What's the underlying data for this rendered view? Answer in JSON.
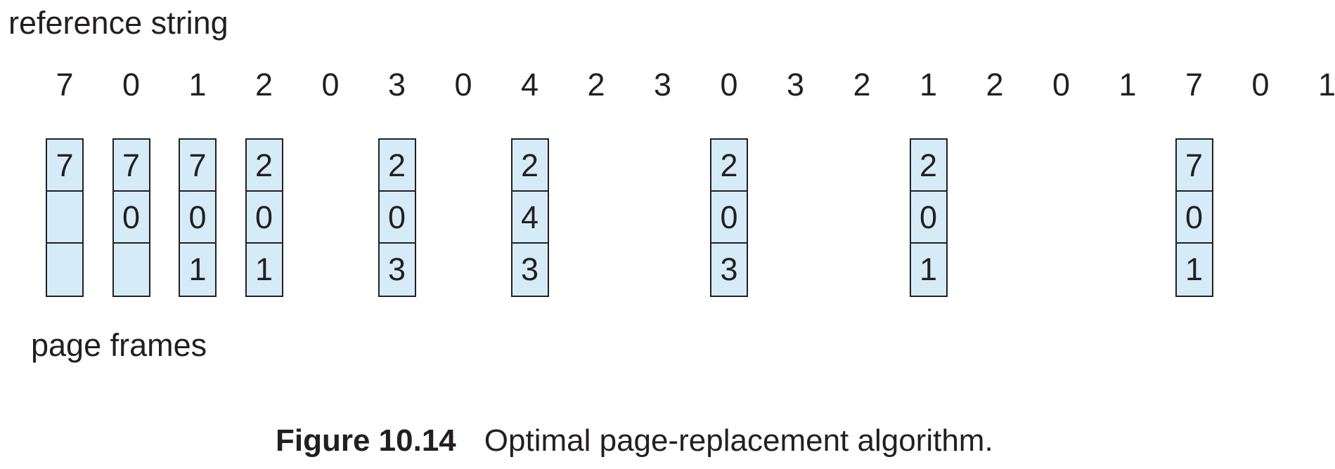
{
  "reference_label": "reference string",
  "reference_string": [
    "7",
    "0",
    "1",
    "2",
    "0",
    "3",
    "0",
    "4",
    "2",
    "3",
    "0",
    "3",
    "2",
    "1",
    "2",
    "0",
    "1",
    "7",
    "0",
    "1"
  ],
  "page_frames_label": "page frames",
  "frame_snapshots": [
    {
      "ref_index": 0,
      "frames": [
        "7",
        "",
        ""
      ]
    },
    {
      "ref_index": 1,
      "frames": [
        "7",
        "0",
        ""
      ]
    },
    {
      "ref_index": 2,
      "frames": [
        "7",
        "0",
        "1"
      ]
    },
    {
      "ref_index": 3,
      "frames": [
        "2",
        "0",
        "1"
      ]
    },
    {
      "ref_index": 5,
      "frames": [
        "2",
        "0",
        "3"
      ]
    },
    {
      "ref_index": 7,
      "frames": [
        "2",
        "4",
        "3"
      ]
    },
    {
      "ref_index": 10,
      "frames": [
        "2",
        "0",
        "3"
      ]
    },
    {
      "ref_index": 13,
      "frames": [
        "2",
        "0",
        "1"
      ]
    },
    {
      "ref_index": 17,
      "frames": [
        "7",
        "0",
        "1"
      ]
    }
  ],
  "caption": {
    "number": "Figure 10.14",
    "text": "Optimal page-replacement algorithm."
  },
  "colors": {
    "frame_fill": "#d5ecf8",
    "stroke": "#231f20"
  }
}
